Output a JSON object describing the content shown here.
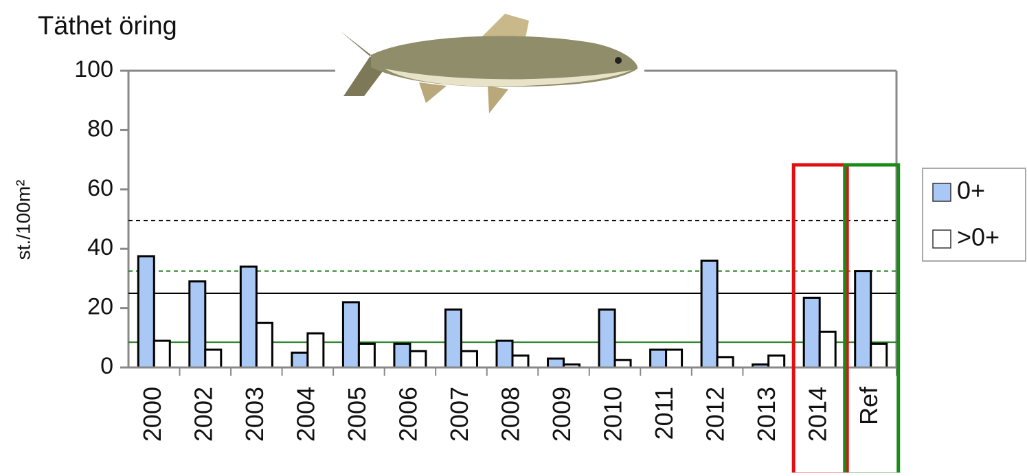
{
  "chart_data": {
    "type": "bar",
    "title": "Täthet öring",
    "y_label": "st./100m²",
    "categories": [
      "2000",
      "2002",
      "2003",
      "2004",
      "2005",
      "2006",
      "2007",
      "2008",
      "2009",
      "2010",
      "2011",
      "2012",
      "2013",
      "2014",
      "Ref"
    ],
    "series": [
      {
        "name": "0+",
        "color": "#a9c8f5",
        "values": [
          37.5,
          29,
          34,
          5,
          22,
          8,
          19.5,
          9,
          3,
          19.5,
          6,
          36,
          1,
          23.5,
          32.5
        ]
      },
      {
        "name": ">0+",
        "color": "#ffffff",
        "values": [
          9,
          6,
          15,
          11.5,
          8,
          5.5,
          5.5,
          4,
          1,
          2.5,
          6,
          3.5,
          4,
          12,
          8
        ]
      }
    ],
    "ylim": [
      0,
      100
    ],
    "yticks": [
      0,
      20,
      40,
      60,
      80,
      100
    ],
    "reference_lines": [
      {
        "value": 49.5,
        "color": "#000000",
        "style": "dashed"
      },
      {
        "value": 32.5,
        "color": "#1a7a1a",
        "style": "dashed"
      },
      {
        "value": 25,
        "color": "#000000",
        "style": "solid"
      },
      {
        "value": 8.5,
        "color": "#1a7a1a",
        "style": "solid"
      }
    ],
    "highlights": [
      {
        "index": 13,
        "color": "#e01010"
      },
      {
        "index": 14,
        "color": "#1a8a1a"
      }
    ],
    "legend": "right"
  }
}
